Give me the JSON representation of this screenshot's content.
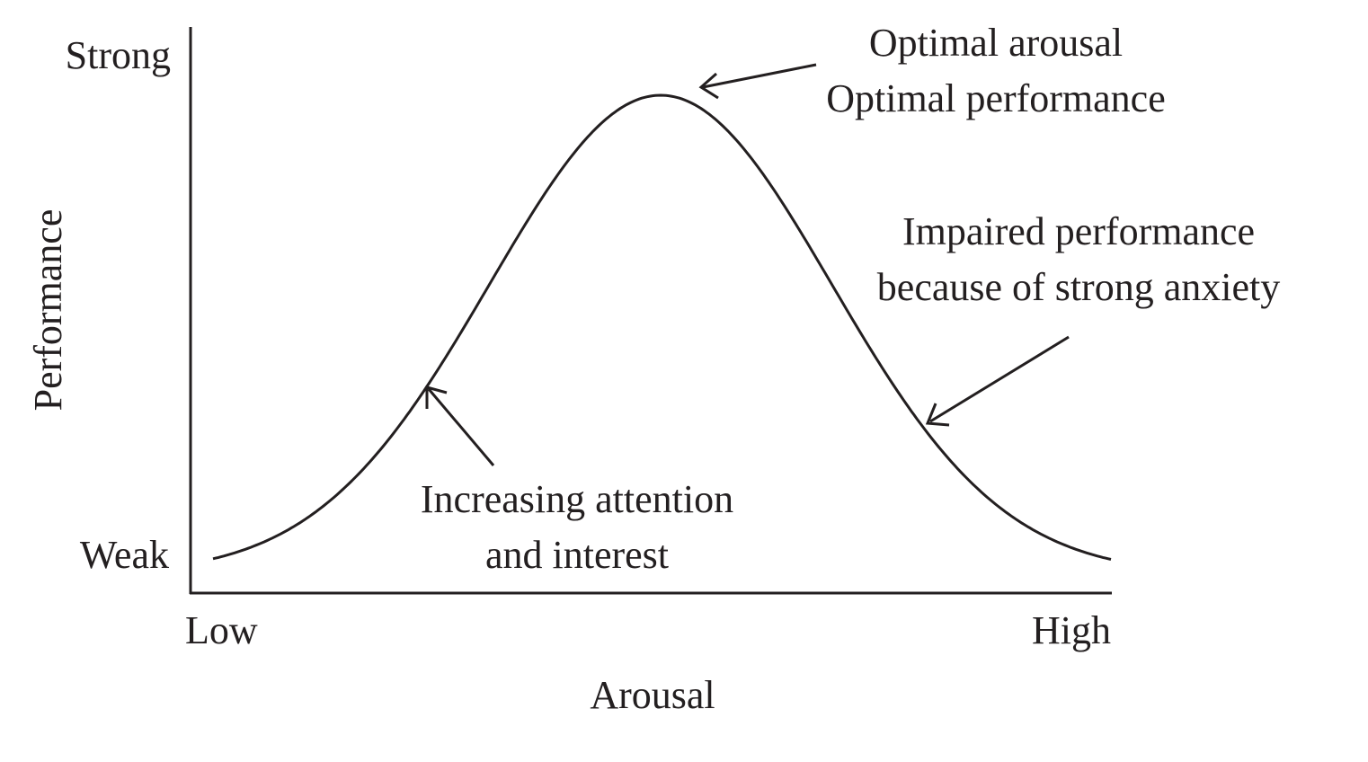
{
  "axes": {
    "y_label": "Performance",
    "y_top_label": "Strong",
    "y_bottom_label": "Weak",
    "x_label": "Arousal",
    "x_left_label": "Low",
    "x_right_label": "High"
  },
  "annotations": {
    "peak": {
      "line1": "Optimal arousal",
      "line2": "Optimal performance"
    },
    "right_slope": {
      "line1": "Impaired performance",
      "line2": "because of strong anxiety"
    },
    "left_slope": {
      "line1": "Increasing attention",
      "line2": "and interest"
    }
  },
  "colors": {
    "ink": "#231f20",
    "background": "#ffffff"
  }
}
